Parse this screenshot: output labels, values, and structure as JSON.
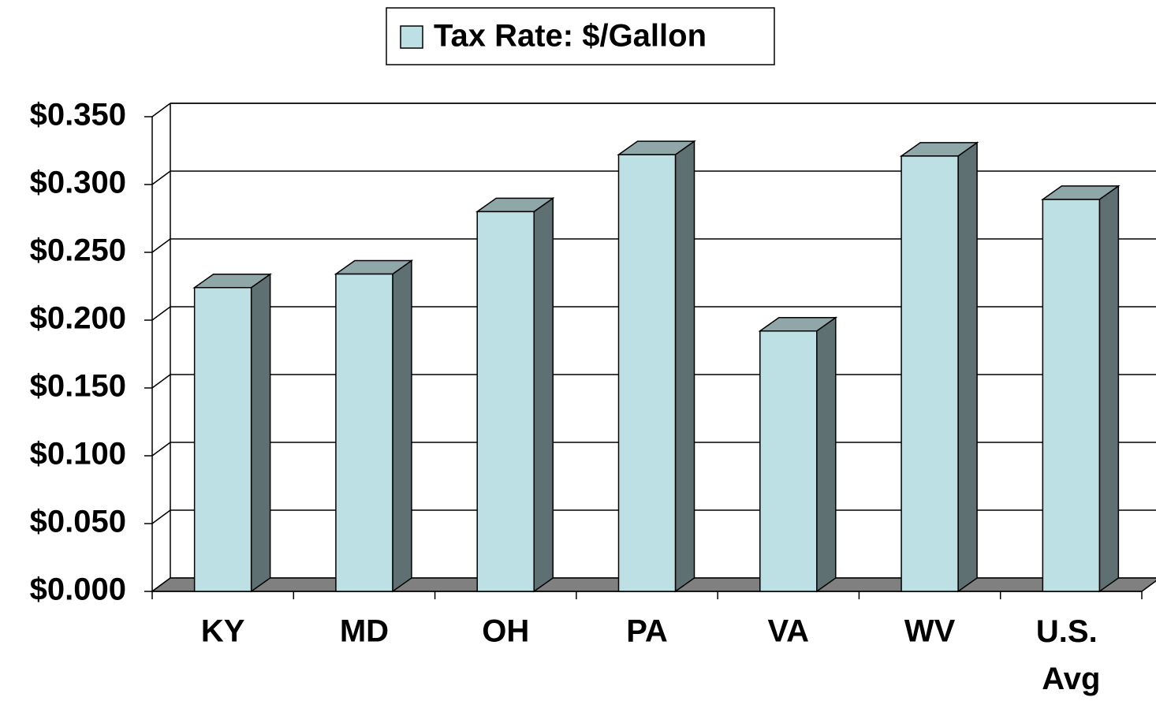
{
  "chart_data": {
    "type": "bar3d",
    "categories": [
      "KY",
      "MD",
      "OH",
      "PA",
      "VA",
      "WV",
      "U.S. Avg"
    ],
    "series": [
      {
        "name": "Tax Rate: $/Gallon",
        "color": "#bce0e3",
        "values": [
          0.224,
          0.234,
          0.28,
          0.322,
          0.192,
          0.321,
          0.289
        ]
      }
    ],
    "ylim": [
      0,
      0.35
    ],
    "yticks": [
      {
        "value": 0,
        "label": "$0.000"
      },
      {
        "value": 0.05,
        "label": "$0.050"
      },
      {
        "value": 0.1,
        "label": "$0.100"
      },
      {
        "value": 0.15,
        "label": "$0.150"
      },
      {
        "value": 0.2,
        "label": "$0.200"
      },
      {
        "value": 0.25,
        "label": "$0.250"
      },
      {
        "value": 0.3,
        "label": "$0.300"
      },
      {
        "value": 0.35,
        "label": "$0.350"
      }
    ],
    "grid": true,
    "legend": "top"
  }
}
